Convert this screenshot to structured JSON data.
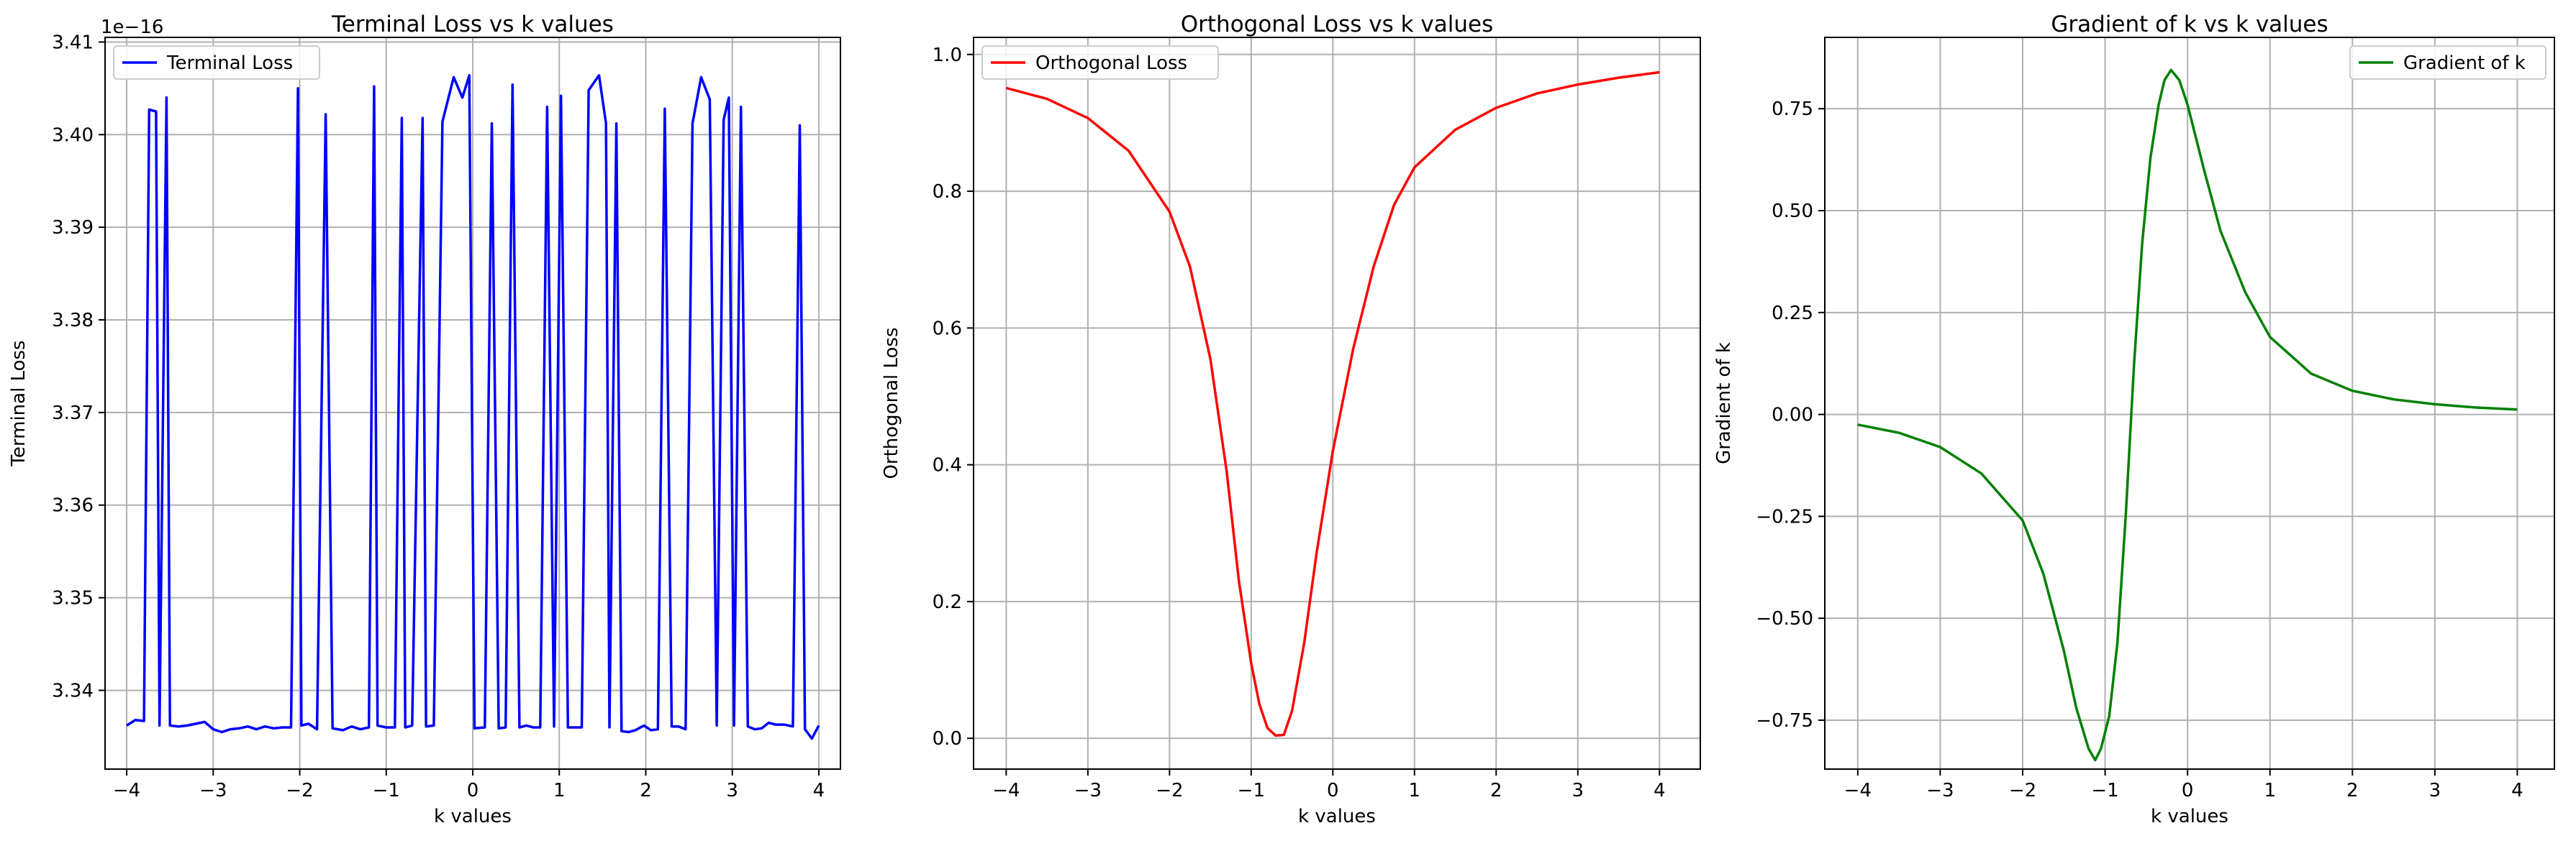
{
  "chart_data": [
    {
      "type": "line",
      "title": "Terminal Loss vs k values",
      "xlabel": "k values",
      "ylabel": "Terminal Loss",
      "y_offset_label": "1e−16",
      "xlim": [
        -4.25,
        4.25
      ],
      "ylim": [
        3.3315,
        3.4105
      ],
      "xticks": [
        -4,
        -3,
        -2,
        -1,
        0,
        1,
        2,
        3,
        4
      ],
      "xtick_labels": [
        "−4",
        "−3",
        "−2",
        "−1",
        "0",
        "1",
        "2",
        "3",
        "4"
      ],
      "yticks": [
        3.34,
        3.35,
        3.36,
        3.37,
        3.38,
        3.39,
        3.4,
        3.41
      ],
      "ytick_labels": [
        "3.34",
        "3.35",
        "3.36",
        "3.37",
        "3.38",
        "3.39",
        "3.40",
        "3.41"
      ],
      "grid": true,
      "legend_position": "upper left",
      "series": [
        {
          "name": "Terminal Loss",
          "color": "#0000ff",
          "points": [
            [
              -4.0,
              3.3362
            ],
            [
              -3.9,
              3.3368
            ],
            [
              -3.8,
              3.3367
            ],
            [
              -3.74,
              3.4027
            ],
            [
              -3.66,
              3.4025
            ],
            [
              -3.62,
              3.3362
            ],
            [
              -3.54,
              3.404
            ],
            [
              -3.5,
              3.3362
            ],
            [
              -3.4,
              3.3361
            ],
            [
              -3.3,
              3.3362
            ],
            [
              -3.2,
              3.3364
            ],
            [
              -3.1,
              3.3366
            ],
            [
              -3.0,
              3.3358
            ],
            [
              -2.9,
              3.3355
            ],
            [
              -2.8,
              3.3358
            ],
            [
              -2.7,
              3.3359
            ],
            [
              -2.6,
              3.3361
            ],
            [
              -2.5,
              3.3358
            ],
            [
              -2.4,
              3.3361
            ],
            [
              -2.3,
              3.3359
            ],
            [
              -2.2,
              3.336
            ],
            [
              -2.1,
              3.336
            ],
            [
              -2.02,
              3.405
            ],
            [
              -1.98,
              3.3362
            ],
            [
              -1.9,
              3.3364
            ],
            [
              -1.8,
              3.3358
            ],
            [
              -1.7,
              3.4022
            ],
            [
              -1.62,
              3.3359
            ],
            [
              -1.5,
              3.3357
            ],
            [
              -1.4,
              3.3361
            ],
            [
              -1.3,
              3.3358
            ],
            [
              -1.2,
              3.336
            ],
            [
              -1.14,
              3.4052
            ],
            [
              -1.1,
              3.3362
            ],
            [
              -1.0,
              3.336
            ],
            [
              -0.9,
              3.336
            ],
            [
              -0.82,
              3.4018
            ],
            [
              -0.78,
              3.336
            ],
            [
              -0.7,
              3.3362
            ],
            [
              -0.58,
              3.4018
            ],
            [
              -0.54,
              3.3361
            ],
            [
              -0.45,
              3.3362
            ],
            [
              -0.35,
              3.4014
            ],
            [
              -0.22,
              3.4062
            ],
            [
              -0.12,
              3.404
            ],
            [
              -0.04,
              3.4064
            ],
            [
              0.02,
              3.3359
            ],
            [
              0.14,
              3.336
            ],
            [
              0.22,
              3.4012
            ],
            [
              0.3,
              3.3359
            ],
            [
              0.38,
              3.336
            ],
            [
              0.46,
              3.4054
            ],
            [
              0.54,
              3.336
            ],
            [
              0.62,
              3.3362
            ],
            [
              0.7,
              3.336
            ],
            [
              0.78,
              3.336
            ],
            [
              0.86,
              3.403
            ],
            [
              0.94,
              3.3361
            ],
            [
              1.02,
              3.4042
            ],
            [
              1.1,
              3.336
            ],
            [
              1.18,
              3.336
            ],
            [
              1.26,
              3.336
            ],
            [
              1.34,
              3.4048
            ],
            [
              1.46,
              3.4064
            ],
            [
              1.54,
              3.4012
            ],
            [
              1.58,
              3.336
            ],
            [
              1.66,
              3.4012
            ],
            [
              1.72,
              3.3356
            ],
            [
              1.8,
              3.3355
            ],
            [
              1.88,
              3.3357
            ],
            [
              1.98,
              3.3362
            ],
            [
              2.06,
              3.3357
            ],
            [
              2.14,
              3.3358
            ],
            [
              2.22,
              3.4028
            ],
            [
              2.3,
              3.3361
            ],
            [
              2.38,
              3.3361
            ],
            [
              2.46,
              3.3358
            ],
            [
              2.54,
              3.4012
            ],
            [
              2.64,
              3.4062
            ],
            [
              2.74,
              3.4038
            ],
            [
              2.82,
              3.3362
            ],
            [
              2.9,
              3.4016
            ],
            [
              2.96,
              3.404
            ],
            [
              3.02,
              3.3362
            ],
            [
              3.1,
              3.403
            ],
            [
              3.18,
              3.3361
            ],
            [
              3.26,
              3.3358
            ],
            [
              3.34,
              3.3359
            ],
            [
              3.42,
              3.3365
            ],
            [
              3.5,
              3.3363
            ],
            [
              3.6,
              3.3363
            ],
            [
              3.7,
              3.3361
            ],
            [
              3.78,
              3.401
            ],
            [
              3.84,
              3.3358
            ],
            [
              3.92,
              3.3348
            ],
            [
              4.0,
              3.3362
            ]
          ]
        }
      ]
    },
    {
      "type": "line",
      "title": "Orthogonal Loss vs k values",
      "xlabel": "k values",
      "ylabel": "Orthogonal Loss",
      "xlim": [
        -4.4,
        4.5
      ],
      "ylim": [
        -0.045,
        1.025
      ],
      "xticks": [
        -4,
        -3,
        -2,
        -1,
        0,
        1,
        2,
        3,
        4
      ],
      "xtick_labels": [
        "−4",
        "−3",
        "−2",
        "−1",
        "0",
        "1",
        "2",
        "3",
        "4"
      ],
      "yticks": [
        0.0,
        0.2,
        0.4,
        0.6,
        0.8,
        1.0
      ],
      "ytick_labels": [
        "0.0",
        "0.2",
        "0.4",
        "0.6",
        "0.8",
        "1.0"
      ],
      "grid": true,
      "legend_position": "upper left",
      "series": [
        {
          "name": "Orthogonal Loss",
          "color": "#ff0000",
          "points": [
            [
              -4.0,
              0.951
            ],
            [
              -3.5,
              0.935
            ],
            [
              -3.0,
              0.907
            ],
            [
              -2.5,
              0.859
            ],
            [
              -2.0,
              0.77
            ],
            [
              -1.75,
              0.69
            ],
            [
              -1.5,
              0.555
            ],
            [
              -1.3,
              0.39
            ],
            [
              -1.15,
              0.23
            ],
            [
              -1.0,
              0.11
            ],
            [
              -0.9,
              0.05
            ],
            [
              -0.8,
              0.015
            ],
            [
              -0.7,
              0.004
            ],
            [
              -0.6,
              0.005
            ],
            [
              -0.5,
              0.04
            ],
            [
              -0.35,
              0.14
            ],
            [
              -0.2,
              0.27
            ],
            [
              0.0,
              0.42
            ],
            [
              0.25,
              0.57
            ],
            [
              0.5,
              0.69
            ],
            [
              0.75,
              0.78
            ],
            [
              1.0,
              0.835
            ],
            [
              1.5,
              0.89
            ],
            [
              2.0,
              0.922
            ],
            [
              2.5,
              0.943
            ],
            [
              3.0,
              0.956
            ],
            [
              3.5,
              0.966
            ],
            [
              4.0,
              0.974
            ]
          ]
        }
      ]
    },
    {
      "type": "line",
      "title": "Gradient of k vs k values",
      "xlabel": "k values",
      "ylabel": "Gradient of k",
      "xlim": [
        -4.4,
        4.45
      ],
      "ylim": [
        -0.87,
        0.925
      ],
      "xticks": [
        -4,
        -3,
        -2,
        -1,
        0,
        1,
        2,
        3,
        4
      ],
      "xtick_labels": [
        "−4",
        "−3",
        "−2",
        "−1",
        "0",
        "1",
        "2",
        "3",
        "4"
      ],
      "yticks": [
        -0.75,
        -0.5,
        -0.25,
        0.0,
        0.25,
        0.5,
        0.75
      ],
      "ytick_labels": [
        "−0.75",
        "−0.50",
        "−0.25",
        "0.00",
        "0.25",
        "0.50",
        "0.75"
      ],
      "grid": true,
      "legend_position": "upper right",
      "series": [
        {
          "name": "Gradient of k",
          "color": "#008000",
          "points": [
            [
              -4.0,
              -0.025
            ],
            [
              -3.5,
              -0.045
            ],
            [
              -3.0,
              -0.08
            ],
            [
              -2.5,
              -0.145
            ],
            [
              -2.0,
              -0.26
            ],
            [
              -1.75,
              -0.39
            ],
            [
              -1.5,
              -0.58
            ],
            [
              -1.35,
              -0.72
            ],
            [
              -1.2,
              -0.82
            ],
            [
              -1.12,
              -0.848
            ],
            [
              -1.05,
              -0.82
            ],
            [
              -0.95,
              -0.74
            ],
            [
              -0.85,
              -0.56
            ],
            [
              -0.75,
              -0.25
            ],
            [
              -0.65,
              0.12
            ],
            [
              -0.55,
              0.42
            ],
            [
              -0.45,
              0.63
            ],
            [
              -0.35,
              0.76
            ],
            [
              -0.28,
              0.82
            ],
            [
              -0.2,
              0.845
            ],
            [
              -0.1,
              0.82
            ],
            [
              0.0,
              0.76
            ],
            [
              0.2,
              0.6
            ],
            [
              0.4,
              0.45
            ],
            [
              0.7,
              0.3
            ],
            [
              1.0,
              0.19
            ],
            [
              1.5,
              0.1
            ],
            [
              2.0,
              0.058
            ],
            [
              2.5,
              0.037
            ],
            [
              3.0,
              0.025
            ],
            [
              3.5,
              0.017
            ],
            [
              4.0,
              0.012
            ]
          ]
        }
      ]
    }
  ]
}
